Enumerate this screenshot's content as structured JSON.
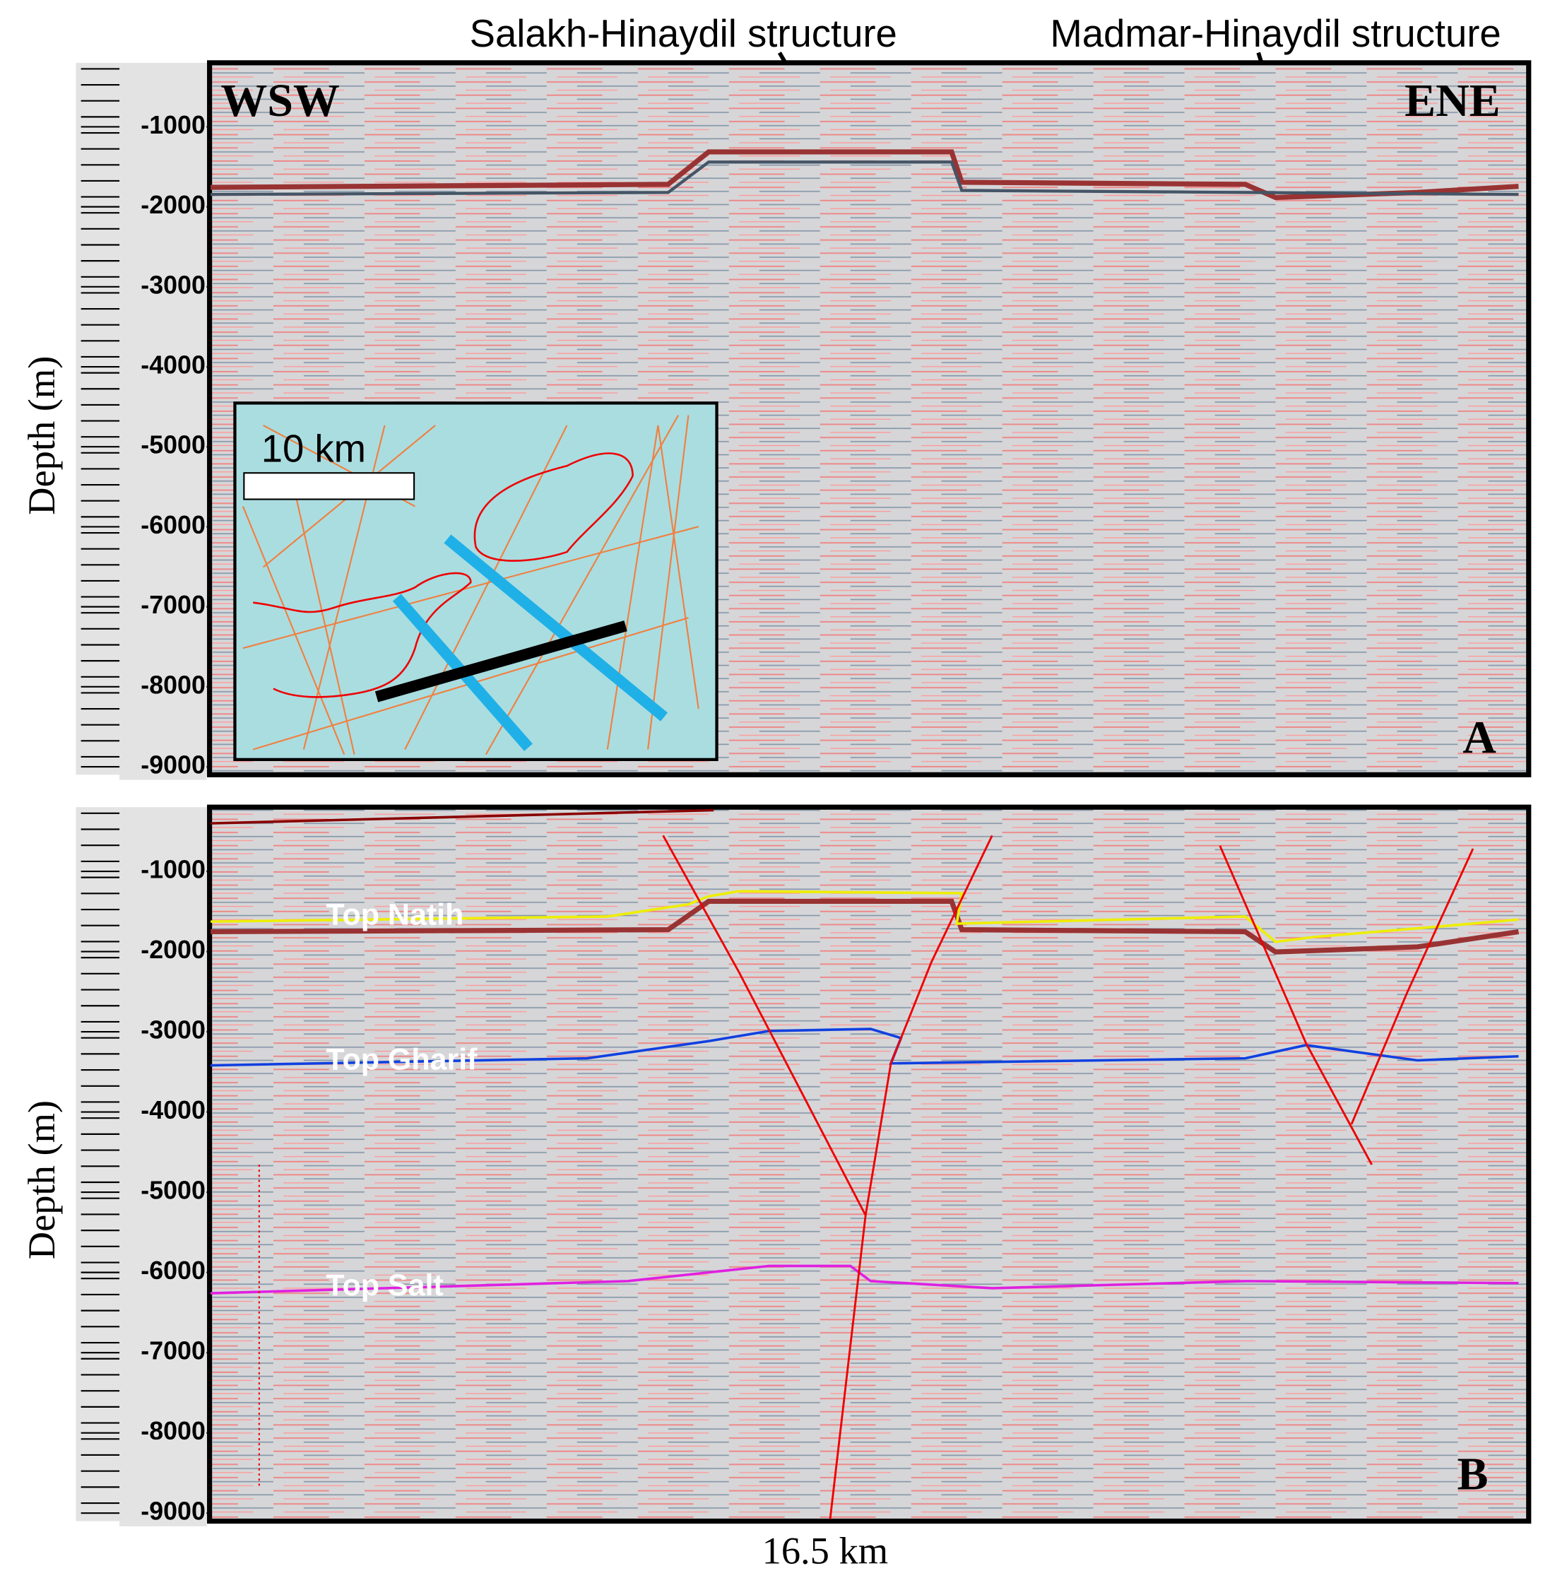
{
  "annotations": {
    "left_structure": "Salakh-Hinaydil structure",
    "right_structure": "Madmar-Hinaydil structure"
  },
  "panels": [
    {
      "label": "A",
      "axis_label": "Depth (m)",
      "ylim": [
        -200,
        -9100
      ],
      "yticks": [
        -1000,
        -2000,
        -3000,
        -4000,
        -5000,
        -6000,
        -7000,
        -8000,
        -9000
      ],
      "west": "WSW",
      "east": "ENE",
      "inset_scale": "10 km"
    },
    {
      "label": "B",
      "axis_label": "Depth (m)",
      "ylim": [
        -200,
        -9100
      ],
      "yticks": [
        -1000,
        -2000,
        -3000,
        -4000,
        -5000,
        -6000,
        -7000,
        -8000,
        -9000
      ],
      "horizons": [
        "Top Natih",
        "Top Gharif",
        "Top Salt"
      ],
      "scale": "16.5 km"
    }
  ]
}
